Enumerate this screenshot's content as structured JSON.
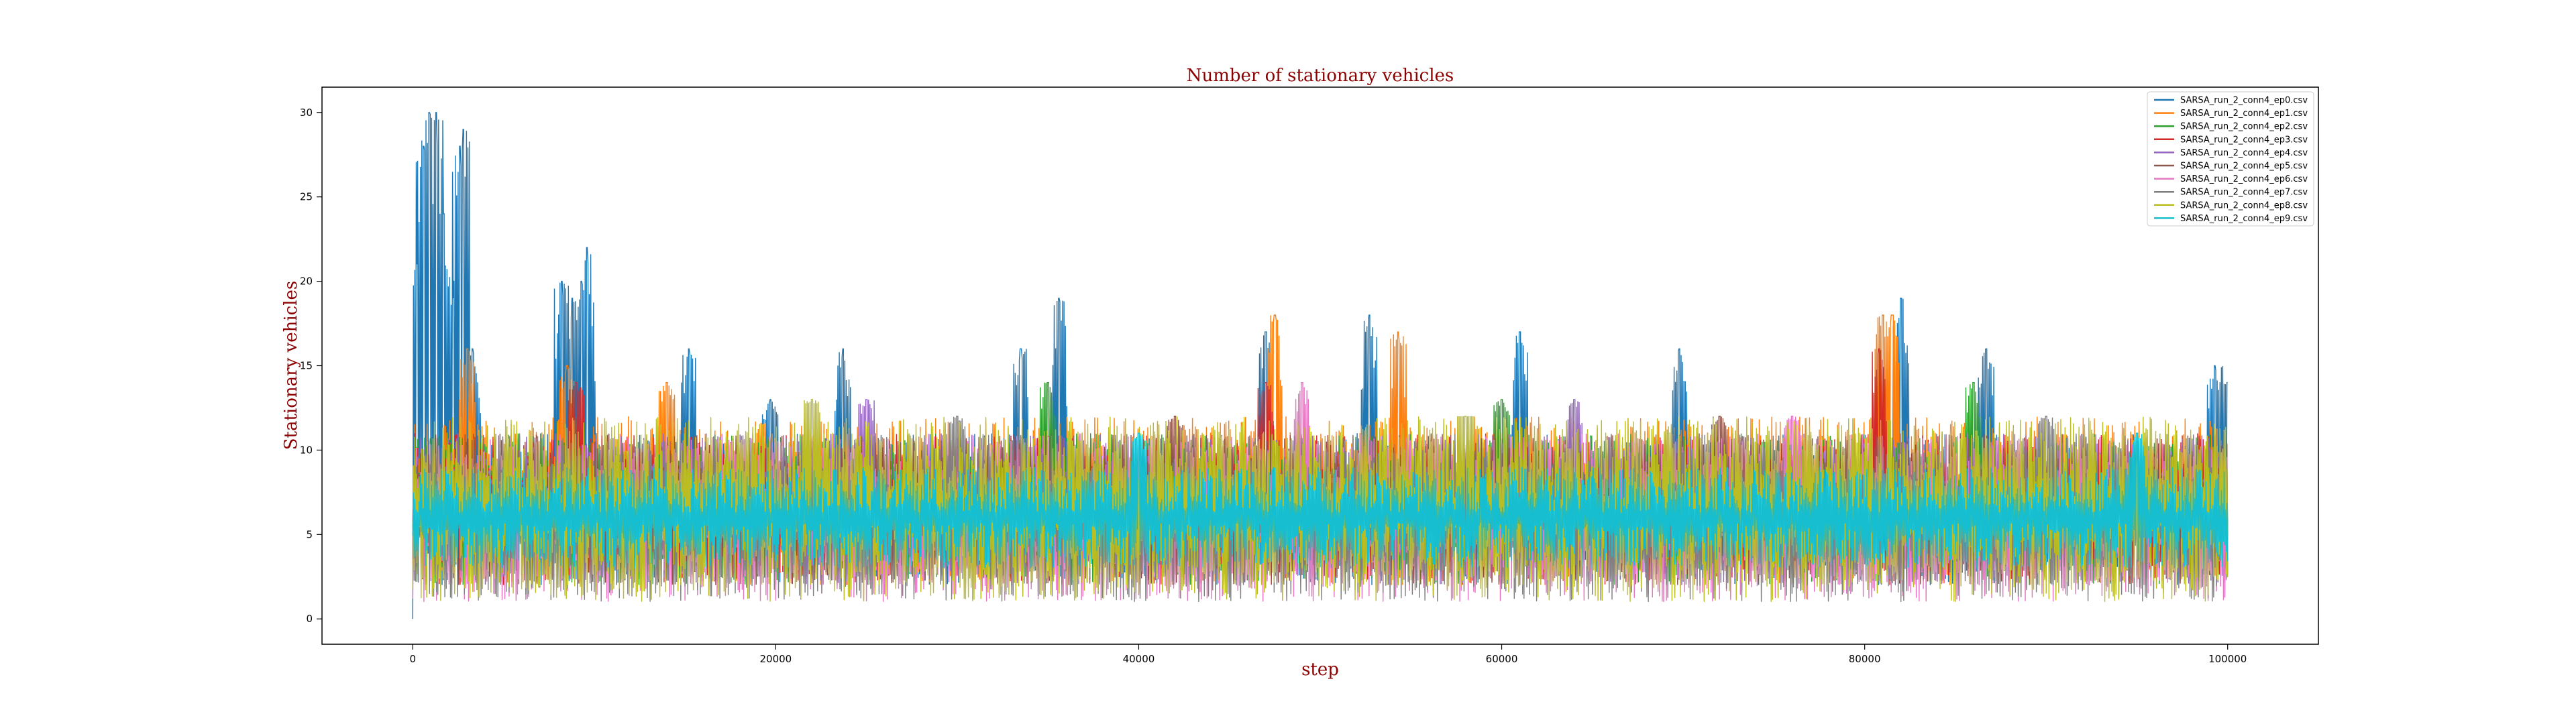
{
  "chart_data": {
    "type": "line",
    "title": "Number of stationary vehicles",
    "xlabel": "step",
    "ylabel": "Stationary vehicles",
    "xlim": [
      -5000,
      105000
    ],
    "ylim": [
      -1.5,
      31.5
    ],
    "xticks": [
      0,
      20000,
      40000,
      60000,
      80000,
      100000
    ],
    "xtick_labels": [
      "0",
      "20000",
      "40000",
      "60000",
      "80000",
      "100000"
    ],
    "yticks": [
      0,
      5,
      10,
      15,
      20,
      25,
      30
    ],
    "ytick_labels": [
      "0",
      "5",
      "10",
      "15",
      "20",
      "25",
      "30"
    ],
    "grid": false,
    "legend_position": "top-right",
    "step_range": [
      0,
      100000
    ],
    "series": [
      {
        "name": "SARSA_run_2_conn4_ep0.csv",
        "color": "#1f77b4",
        "typical_range": [
          2,
          11
        ],
        "peaks": [
          {
            "x": 0,
            "y": 0
          },
          {
            "x": 200,
            "y": 21
          },
          {
            "x": 600,
            "y": 28
          },
          {
            "x": 900,
            "y": 30
          },
          {
            "x": 1300,
            "y": 30
          },
          {
            "x": 1700,
            "y": 24
          },
          {
            "x": 2200,
            "y": 19
          },
          {
            "x": 2600,
            "y": 28
          },
          {
            "x": 2800,
            "y": 29
          },
          {
            "x": 3300,
            "y": 16
          },
          {
            "x": 8200,
            "y": 20
          },
          {
            "x": 8800,
            "y": 19
          },
          {
            "x": 9300,
            "y": 20
          },
          {
            "x": 9600,
            "y": 22
          },
          {
            "x": 15200,
            "y": 16
          },
          {
            "x": 19700,
            "y": 13
          },
          {
            "x": 23700,
            "y": 16
          },
          {
            "x": 33500,
            "y": 16
          },
          {
            "x": 35600,
            "y": 19
          },
          {
            "x": 47000,
            "y": 17
          },
          {
            "x": 52700,
            "y": 18
          },
          {
            "x": 61000,
            "y": 17
          },
          {
            "x": 69800,
            "y": 16
          },
          {
            "x": 82000,
            "y": 19
          },
          {
            "x": 86700,
            "y": 16
          },
          {
            "x": 99300,
            "y": 15
          },
          {
            "x": 100000,
            "y": 14
          }
        ]
      },
      {
        "name": "SARSA_run_2_conn4_ep1.csv",
        "color": "#ff7f0e",
        "typical_range": [
          2,
          12
        ],
        "peaks": [
          {
            "x": 3000,
            "y": 16
          },
          {
            "x": 8500,
            "y": 15
          },
          {
            "x": 14000,
            "y": 14
          },
          {
            "x": 47500,
            "y": 18
          },
          {
            "x": 54300,
            "y": 17
          },
          {
            "x": 81000,
            "y": 18
          },
          {
            "x": 81500,
            "y": 18
          }
        ]
      },
      {
        "name": "SARSA_run_2_conn4_ep2.csv",
        "color": "#2ca02c",
        "typical_range": [
          2,
          11
        ],
        "peaks": [
          {
            "x": 35000,
            "y": 14
          },
          {
            "x": 60000,
            "y": 13
          },
          {
            "x": 86000,
            "y": 14
          }
        ]
      },
      {
        "name": "SARSA_run_2_conn4_ep3.csv",
        "color": "#d62728",
        "typical_range": [
          2,
          11
        ],
        "peaks": [
          {
            "x": 9000,
            "y": 14
          },
          {
            "x": 47000,
            "y": 14
          },
          {
            "x": 80800,
            "y": 16
          }
        ]
      },
      {
        "name": "SARSA_run_2_conn4_ep4.csv",
        "color": "#9467bd",
        "typical_range": [
          2,
          11
        ],
        "peaks": [
          {
            "x": 25000,
            "y": 13
          },
          {
            "x": 64000,
            "y": 13
          }
        ]
      },
      {
        "name": "SARSA_run_2_conn4_ep5.csv",
        "color": "#8c564b",
        "typical_range": [
          2,
          11
        ],
        "peaks": [
          {
            "x": 42000,
            "y": 12
          },
          {
            "x": 72000,
            "y": 12
          }
        ]
      },
      {
        "name": "SARSA_run_2_conn4_ep6.csv",
        "color": "#e377c2",
        "typical_range": [
          1,
          11
        ],
        "peaks": [
          {
            "x": 49000,
            "y": 14
          },
          {
            "x": 76000,
            "y": 12
          }
        ]
      },
      {
        "name": "SARSA_run_2_conn4_ep7.csv",
        "color": "#7f7f7f",
        "typical_range": [
          1,
          11
        ],
        "peaks": [
          {
            "x": 30000,
            "y": 12
          },
          {
            "x": 90000,
            "y": 12
          }
        ]
      },
      {
        "name": "SARSA_run_2_conn4_ep8.csv",
        "color": "#bcbd22",
        "typical_range": [
          1,
          12
        ],
        "peaks": [
          {
            "x": 22000,
            "y": 13
          },
          {
            "x": 58000,
            "y": 12
          }
        ]
      },
      {
        "name": "SARSA_run_2_conn4_ep9.csv",
        "color": "#17becf",
        "typical_range": [
          3,
          9
        ],
        "peaks": [
          {
            "x": 40000,
            "y": 11
          },
          {
            "x": 95000,
            "y": 11
          }
        ]
      }
    ]
  }
}
